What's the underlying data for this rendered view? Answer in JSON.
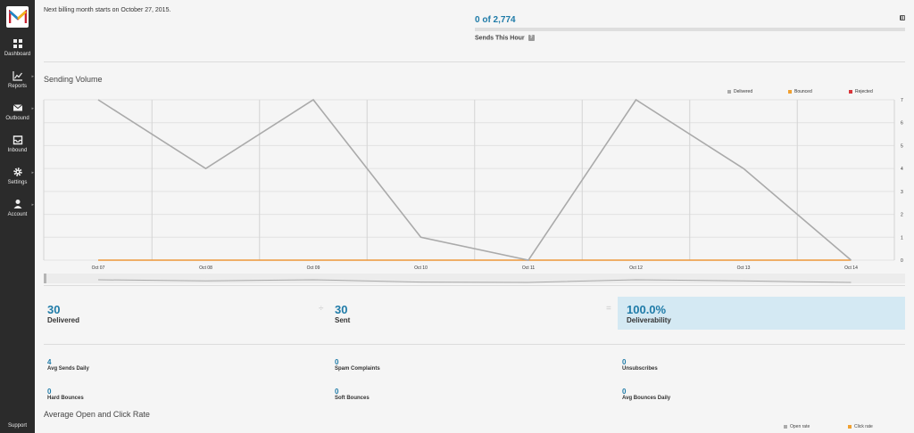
{
  "sidebar": {
    "logo": "M",
    "items": [
      {
        "label": "Dashboard",
        "icon": "dashboard-icon"
      },
      {
        "label": "Reports",
        "icon": "chart-icon"
      },
      {
        "label": "Outbound",
        "icon": "envelope-icon"
      },
      {
        "label": "Inbound",
        "icon": "inbox-icon"
      },
      {
        "label": "Settings",
        "icon": "gear-icon"
      },
      {
        "label": "Account",
        "icon": "user-icon"
      }
    ],
    "support": "Support"
  },
  "header": {
    "billing_text": "Next billing month starts on October 27, 2015.",
    "hourly_count": "0 of 2,774",
    "hourly_label": "Sends This Hour",
    "hourly_progress": 0,
    "help_glyph": "?"
  },
  "sending_volume": {
    "title": "Sending Volume",
    "legend": [
      {
        "name": "Delivered",
        "color": "#aaaaaa"
      },
      {
        "name": "Bounced",
        "color": "#f0a030"
      },
      {
        "name": "Rejected",
        "color": "#d9353a"
      }
    ]
  },
  "chart_data": {
    "type": "line",
    "x": [
      "Oct 07",
      "Oct 08",
      "Oct 09",
      "Oct 10",
      "Oct 11",
      "Oct 12",
      "Oct 13",
      "Oct 14"
    ],
    "series": [
      {
        "name": "Delivered",
        "color": "#aaaaaa",
        "values": [
          7,
          4,
          7,
          1,
          0,
          7,
          4,
          0
        ]
      },
      {
        "name": "Bounced",
        "color": "#f0a030",
        "values": [
          0,
          0,
          0,
          0,
          0,
          0,
          0,
          0
        ]
      },
      {
        "name": "Rejected",
        "color": "#d9353a",
        "values": [
          0,
          0,
          0,
          0,
          0,
          0,
          0,
          0
        ]
      }
    ],
    "yticks": [
      0,
      1,
      2,
      3,
      4,
      5,
      6,
      7
    ],
    "ylim": [
      0,
      7
    ],
    "grid": true,
    "legend_position": "top-right"
  },
  "summary": {
    "delivered": {
      "value": "30",
      "label": "Delivered"
    },
    "divide_symbol": "÷",
    "sent": {
      "value": "30",
      "label": "Sent"
    },
    "equals_symbol": "=",
    "deliverability": {
      "value": "100.0%",
      "label": "Deliverability"
    }
  },
  "stats": [
    {
      "value": "4",
      "label": "Avg Sends Daily"
    },
    {
      "value": "0",
      "label": "Spam Complaints"
    },
    {
      "value": "0",
      "label": "Unsubscribes"
    },
    {
      "value": "0",
      "label": "Hard Bounces"
    },
    {
      "value": "0",
      "label": "Soft Bounces"
    },
    {
      "value": "0",
      "label": "Avg Bounces Daily"
    }
  ],
  "open_click": {
    "title": "Average Open and Click Rate",
    "legend": [
      {
        "name": "Open rate",
        "color": "#aaaaaa"
      },
      {
        "name": "Click rate",
        "color": "#f0a030"
      }
    ]
  }
}
